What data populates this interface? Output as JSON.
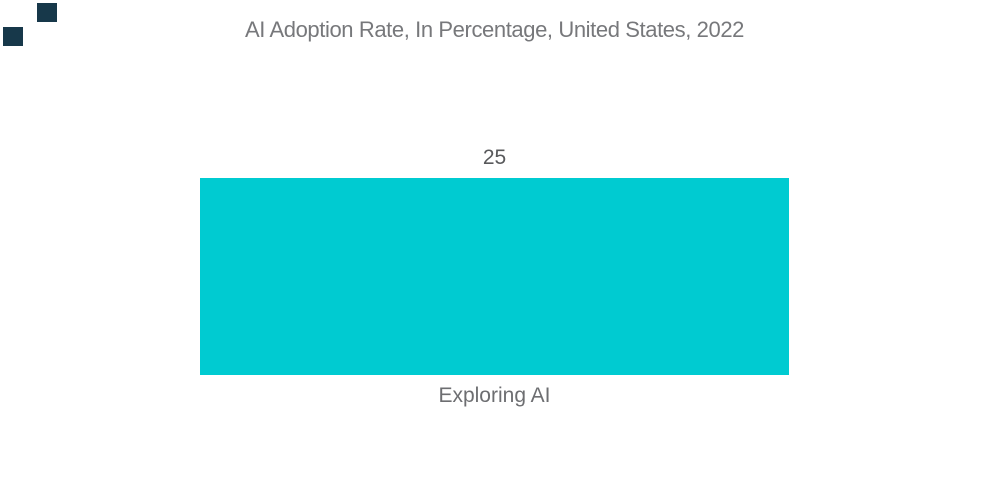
{
  "page": {
    "background": "#FFFFFF"
  },
  "logo": {
    "color": "#17384A"
  },
  "chart_data": {
    "type": "bar",
    "title": "AI Adoption Rate, In Percentage, United States, 2022",
    "categories": [
      "Exploring AI"
    ],
    "values": [
      25
    ],
    "xlabel": "",
    "ylabel": "",
    "grid": false,
    "legend": false,
    "axes_visible": false,
    "value_labels_position": "above-bar",
    "bar_color": "#00CBD1",
    "title_color": "#77787B",
    "value_label_color": "#58595B",
    "category_label_color": "#6D6E71"
  }
}
